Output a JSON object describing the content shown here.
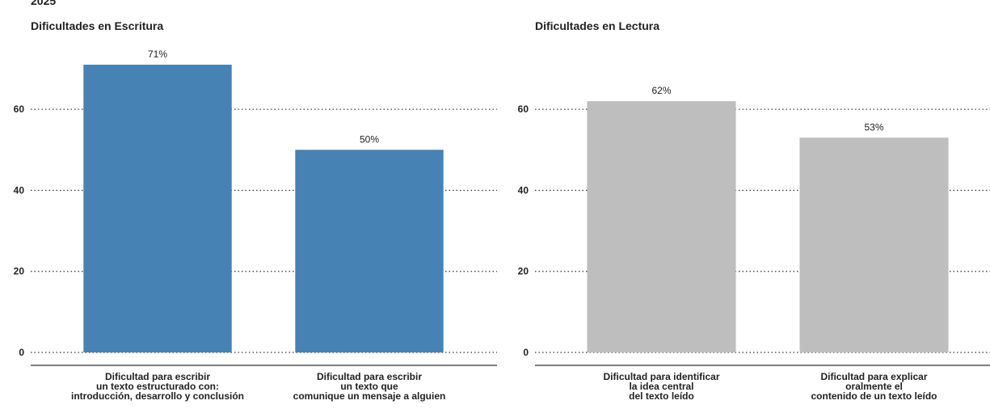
{
  "caption": "2025",
  "chart_data": [
    {
      "type": "bar",
      "title": "Dificultades en Escritura",
      "categories": [
        "Dificultad para escribir\nun texto estructurado con:\nintroducción, desarrollo y conclusión",
        "Dificultad para escribir\nun texto que\ncomunique un mensaje a alguien"
      ],
      "values": [
        71,
        50
      ],
      "value_labels": [
        "71%",
        "50%"
      ],
      "color": "#4682b4",
      "ylim": [
        0,
        75
      ],
      "yticks": [
        0,
        20,
        40,
        60
      ],
      "grid": true
    },
    {
      "type": "bar",
      "title": "Dificultades en Lectura",
      "categories": [
        "Dificultad para identificar\nla idea central\ndel texto leído",
        "Dificultad para explicar\noralmente el\ncontenido de un texto leído"
      ],
      "values": [
        62,
        53
      ],
      "value_labels": [
        "62%",
        "53%"
      ],
      "color": "#bebebe",
      "ylim": [
        0,
        75
      ],
      "yticks": [
        0,
        20,
        40,
        60
      ],
      "grid": true
    }
  ]
}
